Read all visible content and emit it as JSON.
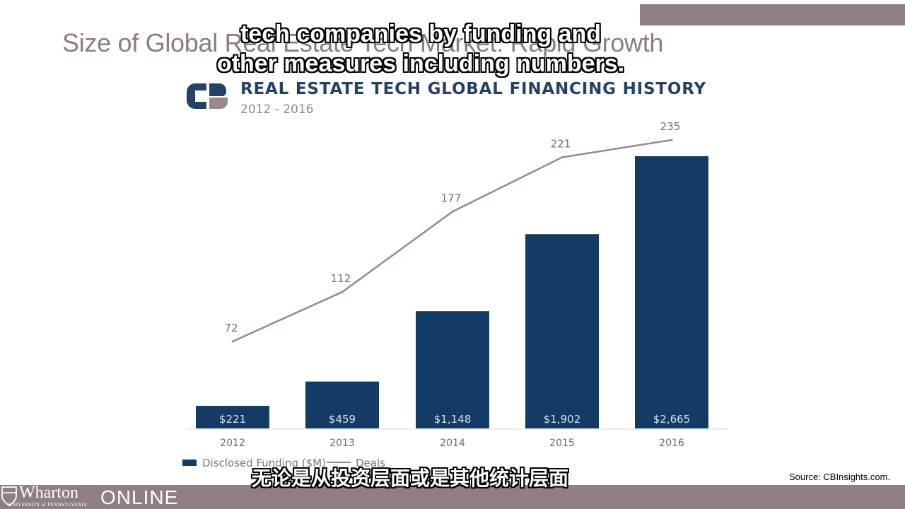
{
  "slide": {
    "title": "Size of Global Real Estate Tech Market: Rapid Growth",
    "source": "Source:  CBInsights.com."
  },
  "captions": {
    "english_line1": "tech companies by funding and",
    "english_line2": "other measures including numbers.",
    "chinese": "无论是从投资层面或是其他统计层面"
  },
  "footer": {
    "brand": "Wharton",
    "brand_sub": "UNIVERSITY of PENNSYLVANIA",
    "product": "ONLINE"
  },
  "colors": {
    "bar": "#143a66",
    "line": "#9b8790",
    "footer": "#8f7e86",
    "title_text": "#8c7b83",
    "chart_title": "#244166"
  },
  "chart_data": {
    "type": "bar",
    "title": "REAL ESTATE TECH GLOBAL FINANCING HISTORY",
    "subtitle": "2012 - 2016",
    "categories": [
      "2012",
      "2013",
      "2014",
      "2015",
      "2016"
    ],
    "series": [
      {
        "name": "Disclosed Funding ($M)",
        "type": "bar",
        "values": [
          221,
          459,
          1148,
          1902,
          2665
        ],
        "labels": [
          "$221",
          "$459",
          "$1,148",
          "$1,902",
          "$2,665"
        ]
      },
      {
        "name": "Deals",
        "type": "line",
        "values": [
          72,
          112,
          177,
          221,
          235
        ],
        "labels": [
          "72",
          "112",
          "177",
          "221",
          "235"
        ]
      }
    ],
    "legend": "bottom-left",
    "grid": false
  }
}
